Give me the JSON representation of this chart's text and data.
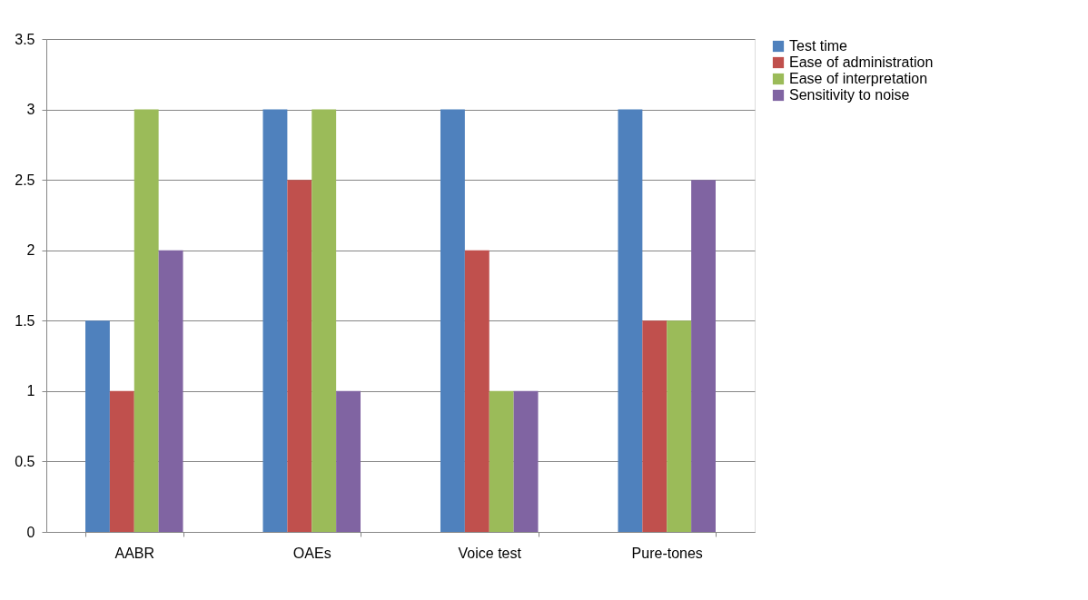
{
  "chart_data": {
    "type": "bar",
    "categories": [
      "AABR",
      "OAEs",
      "Voice test",
      "Pure-tones"
    ],
    "series": [
      {
        "name": "Test time",
        "color": "#4f81bd",
        "values": [
          1.5,
          3,
          3,
          3
        ]
      },
      {
        "name": "Ease of administration",
        "color": "#c0504d",
        "values": [
          1,
          2.5,
          2,
          1.5
        ]
      },
      {
        "name": "Ease of interpretation",
        "color": "#9bbb59",
        "values": [
          3,
          3,
          1,
          1.5
        ]
      },
      {
        "name": "Sensitivity to noise",
        "color": "#8064a2",
        "values": [
          2,
          1,
          1,
          2.5
        ]
      }
    ],
    "ylim": [
      0,
      3.5
    ],
    "yticks": [
      0,
      0.5,
      1,
      1.5,
      2,
      2.5,
      3,
      3.5
    ],
    "grid": "y",
    "legend": "right"
  }
}
